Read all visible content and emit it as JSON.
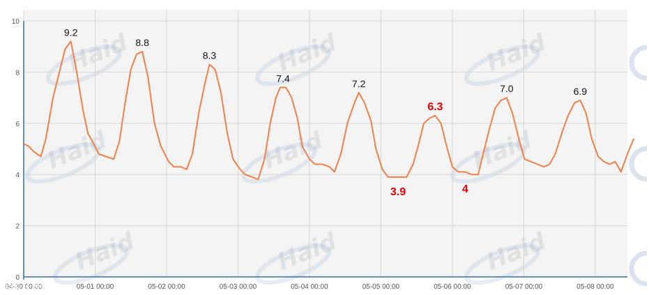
{
  "chart_data": {
    "type": "line",
    "title": "",
    "xlabel": "",
    "ylabel": "",
    "ylim": [
      0,
      10
    ],
    "yticks": [
      0,
      2,
      4,
      6,
      8,
      10
    ],
    "xtick_labels": [
      "04-30 00:00",
      "05-01 00:00",
      "05-02 00:00",
      "05-03 00:00",
      "05-04 00:00",
      "05-05 00:00",
      "05-06 00:00",
      "05-07 00:00",
      "05-08 00:00"
    ],
    "x_range_days": [
      0,
      8.45
    ],
    "grid": true,
    "line_color": "#f0804a",
    "series": [
      {
        "points": [
          [
            0.0,
            5.2
          ],
          [
            0.07,
            5.1
          ],
          [
            0.14,
            4.9
          ],
          [
            0.24,
            4.7
          ],
          [
            0.31,
            5.4
          ],
          [
            0.41,
            7.0
          ],
          [
            0.5,
            8.0
          ],
          [
            0.58,
            8.9
          ],
          [
            0.66,
            9.2
          ],
          [
            0.73,
            8.2
          ],
          [
            0.83,
            6.5
          ],
          [
            0.9,
            5.6
          ],
          [
            0.98,
            5.2
          ],
          [
            1.05,
            4.8
          ],
          [
            1.15,
            4.7
          ],
          [
            1.26,
            4.6
          ],
          [
            1.34,
            5.3
          ],
          [
            1.42,
            6.8
          ],
          [
            1.5,
            8.1
          ],
          [
            1.58,
            8.7
          ],
          [
            1.66,
            8.8
          ],
          [
            1.74,
            7.8
          ],
          [
            1.83,
            6.0
          ],
          [
            1.92,
            5.1
          ],
          [
            2.03,
            4.5
          ],
          [
            2.1,
            4.3
          ],
          [
            2.2,
            4.3
          ],
          [
            2.28,
            4.2
          ],
          [
            2.36,
            4.8
          ],
          [
            2.45,
            6.4
          ],
          [
            2.54,
            7.6
          ],
          [
            2.6,
            8.3
          ],
          [
            2.68,
            8.1
          ],
          [
            2.76,
            7.2
          ],
          [
            2.85,
            5.6
          ],
          [
            2.93,
            4.6
          ],
          [
            3.03,
            4.2
          ],
          [
            3.1,
            4.0
          ],
          [
            3.2,
            3.9
          ],
          [
            3.28,
            3.8
          ],
          [
            3.37,
            4.6
          ],
          [
            3.45,
            6.0
          ],
          [
            3.53,
            7.0
          ],
          [
            3.59,
            7.4
          ],
          [
            3.67,
            7.4
          ],
          [
            3.75,
            7.0
          ],
          [
            3.83,
            6.2
          ],
          [
            3.9,
            5.1
          ],
          [
            4.0,
            4.6
          ],
          [
            4.08,
            4.4
          ],
          [
            4.18,
            4.4
          ],
          [
            4.28,
            4.3
          ],
          [
            4.35,
            4.1
          ],
          [
            4.44,
            4.8
          ],
          [
            4.53,
            6.0
          ],
          [
            4.63,
            6.8
          ],
          [
            4.69,
            7.2
          ],
          [
            4.77,
            6.8
          ],
          [
            4.86,
            6.1
          ],
          [
            4.93,
            5.0
          ],
          [
            5.02,
            4.2
          ],
          [
            5.1,
            3.9
          ],
          [
            5.2,
            3.9
          ],
          [
            5.28,
            3.9
          ],
          [
            5.36,
            3.9
          ],
          [
            5.45,
            4.4
          ],
          [
            5.52,
            5.1
          ],
          [
            5.6,
            6.0
          ],
          [
            5.68,
            6.2
          ],
          [
            5.76,
            6.3
          ],
          [
            5.84,
            6.0
          ],
          [
            5.93,
            5.0
          ],
          [
            6.0,
            4.3
          ],
          [
            6.08,
            4.1
          ],
          [
            6.18,
            4.1
          ],
          [
            6.27,
            4.0
          ],
          [
            6.36,
            4.0
          ],
          [
            6.44,
            4.9
          ],
          [
            6.52,
            5.8
          ],
          [
            6.6,
            6.6
          ],
          [
            6.68,
            6.9
          ],
          [
            6.76,
            7.0
          ],
          [
            6.84,
            6.4
          ],
          [
            6.93,
            5.4
          ],
          [
            7.01,
            4.6
          ],
          [
            7.1,
            4.5
          ],
          [
            7.19,
            4.4
          ],
          [
            7.28,
            4.3
          ],
          [
            7.36,
            4.4
          ],
          [
            7.44,
            4.8
          ],
          [
            7.53,
            5.6
          ],
          [
            7.62,
            6.3
          ],
          [
            7.71,
            6.8
          ],
          [
            7.79,
            6.9
          ],
          [
            7.87,
            6.4
          ],
          [
            7.95,
            5.4
          ],
          [
            8.04,
            4.7
          ],
          [
            8.12,
            4.5
          ],
          [
            8.2,
            4.4
          ],
          [
            8.28,
            4.5
          ],
          [
            8.36,
            4.1
          ],
          [
            8.45,
            4.8
          ],
          [
            8.54,
            5.4
          ]
        ]
      }
    ],
    "annotations": [
      {
        "text": "9.2",
        "x": 0.66,
        "y": 9.2,
        "pos": "above",
        "color": "#111111",
        "bold": false
      },
      {
        "text": "8.8",
        "x": 1.66,
        "y": 8.8,
        "pos": "above",
        "color": "#111111",
        "bold": false
      },
      {
        "text": "8.3",
        "x": 2.6,
        "y": 8.3,
        "pos": "above",
        "color": "#111111",
        "bold": false
      },
      {
        "text": "7.4",
        "x": 3.63,
        "y": 7.4,
        "pos": "above",
        "color": "#111111",
        "bold": false
      },
      {
        "text": "7.2",
        "x": 4.69,
        "y": 7.2,
        "pos": "above",
        "color": "#111111",
        "bold": false
      },
      {
        "text": "6.3",
        "x": 5.76,
        "y": 6.3,
        "pos": "above",
        "color": "#e00000",
        "bold": true
      },
      {
        "text": "3.9",
        "x": 5.24,
        "y": 3.9,
        "pos": "below",
        "color": "#e00000",
        "bold": true
      },
      {
        "text": "4",
        "x": 6.18,
        "y": 4.0,
        "pos": "below",
        "color": "#e00000",
        "bold": true
      },
      {
        "text": "7.0",
        "x": 6.76,
        "y": 7.0,
        "pos": "above",
        "color": "#111111",
        "bold": false
      },
      {
        "text": "6.9",
        "x": 7.79,
        "y": 6.9,
        "pos": "above",
        "color": "#111111",
        "bold": false
      }
    ]
  },
  "watermark": {
    "brand": "Haid",
    "footer": "知乎 大数跨境"
  }
}
